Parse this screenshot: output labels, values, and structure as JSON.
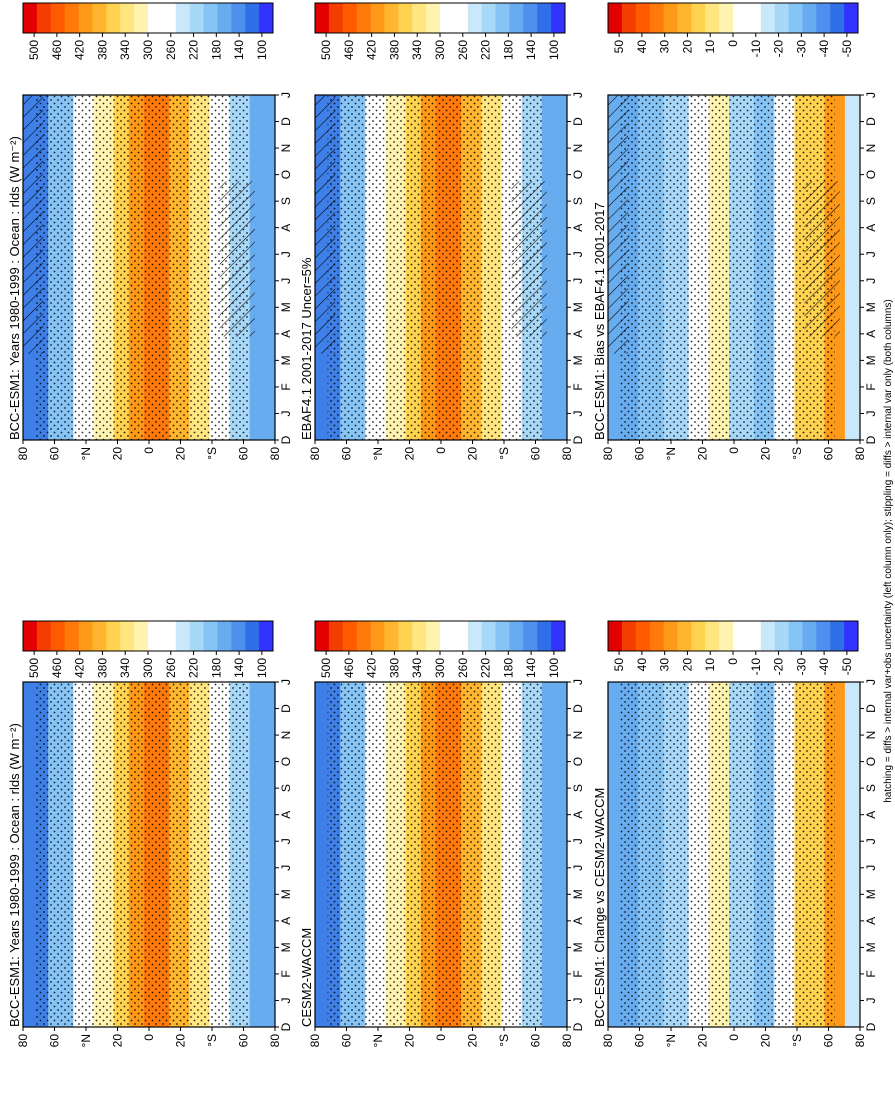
{
  "figure": {
    "footnote": "hatching = diffs > internal var+obs uncertainty (left column only); stippling = diffs > internal var only (both columns)"
  },
  "colors": {
    "abs_scale": [
      "#3333ff",
      "#2f6fe8",
      "#4f90ee",
      "#68acf0",
      "#86c4f5",
      "#a8d8f8",
      "#c9e8fb",
      "#ffffff",
      "#ffffff",
      "#fff3b0",
      "#ffe680",
      "#ffd24f",
      "#ffb52e",
      "#ff9a18",
      "#ff7a0a",
      "#ff5a00",
      "#f43d00",
      "#e30000"
    ],
    "diff_scale": [
      "#3333ff",
      "#2f6fe8",
      "#4f90ee",
      "#68acf0",
      "#86c4f5",
      "#a8d8f8",
      "#c9e8fb",
      "#ffffff",
      "#ffffff",
      "#fff3b0",
      "#ffe680",
      "#ffd24f",
      "#ffb52e",
      "#ff9a18",
      "#ff7a0a",
      "#ff5a00",
      "#f43d00",
      "#e30000"
    ]
  },
  "chart_data": [
    {
      "id": "p1",
      "type": "heatmap",
      "title": "BCC-ESM1: Years 1980-1999 : Ocean : rlds (W m⁻²)",
      "x": [
        "D",
        "J",
        "F",
        "M",
        "A",
        "M",
        "J",
        "J",
        "A",
        "S",
        "O",
        "N",
        "D",
        "J"
      ],
      "y_ticks": [
        "80",
        "60",
        "°N",
        "20",
        "0",
        "20",
        "°S",
        "60",
        "80"
      ],
      "colorbar_ticks": [
        "500",
        "460",
        "420",
        "380",
        "340",
        "300",
        "260",
        "220",
        "180",
        "140",
        "100"
      ],
      "hatching": true,
      "stippling": true
    },
    {
      "id": "p2",
      "type": "heatmap",
      "title": "BCC-ESM1: Years 1980-1999 : Ocean : rlds (W m⁻²)",
      "x": [
        "D",
        "J",
        "F",
        "M",
        "A",
        "M",
        "J",
        "J",
        "A",
        "S",
        "O",
        "N",
        "D",
        "J"
      ],
      "y_ticks": [
        "80",
        "60",
        "°N",
        "20",
        "0",
        "20",
        "°S",
        "60",
        "80"
      ],
      "colorbar_ticks": [
        "500",
        "460",
        "420",
        "380",
        "340",
        "300",
        "260",
        "220",
        "180",
        "140",
        "100"
      ],
      "hatching": false,
      "stippling": true
    },
    {
      "id": "p3",
      "type": "heatmap",
      "title": "EBAF4.1 2001-2017 Uncer=5%",
      "x": [
        "D",
        "J",
        "F",
        "M",
        "A",
        "M",
        "J",
        "J",
        "A",
        "S",
        "O",
        "N",
        "D",
        "J"
      ],
      "y_ticks": [
        "80",
        "60",
        "°N",
        "20",
        "0",
        "20",
        "°S",
        "60",
        "80"
      ],
      "colorbar_ticks": [
        "500",
        "460",
        "420",
        "380",
        "340",
        "300",
        "260",
        "220",
        "180",
        "140",
        "100"
      ],
      "hatching": true,
      "stippling": true
    },
    {
      "id": "p4",
      "type": "heatmap",
      "title": "CESM2-WACCM",
      "x": [
        "D",
        "J",
        "F",
        "M",
        "A",
        "M",
        "J",
        "J",
        "A",
        "S",
        "O",
        "N",
        "D",
        "J"
      ],
      "y_ticks": [
        "80",
        "60",
        "°N",
        "20",
        "0",
        "20",
        "°S",
        "60",
        "80"
      ],
      "colorbar_ticks": [
        "500",
        "460",
        "420",
        "380",
        "340",
        "300",
        "260",
        "220",
        "180",
        "140",
        "100"
      ],
      "hatching": false,
      "stippling": true
    },
    {
      "id": "p5",
      "type": "heatmap",
      "title": "BCC-ESM1: Bias vs EBAF4.1 2001-2017",
      "x": [
        "D",
        "J",
        "F",
        "M",
        "A",
        "M",
        "J",
        "J",
        "A",
        "S",
        "O",
        "N",
        "D",
        "J"
      ],
      "y_ticks": [
        "80",
        "60",
        "°N",
        "20",
        "0",
        "20",
        "°S",
        "60",
        "80"
      ],
      "colorbar_ticks": [
        "50",
        "40",
        "30",
        "20",
        "10",
        "0",
        "-10",
        "-20",
        "-30",
        "-40",
        "-50"
      ],
      "hatching": true,
      "stippling": true
    },
    {
      "id": "p6",
      "type": "heatmap",
      "title": "BCC-ESM1: Change vs CESM2-WACCM",
      "x": [
        "D",
        "J",
        "F",
        "M",
        "A",
        "M",
        "J",
        "J",
        "A",
        "S",
        "O",
        "N",
        "D",
        "J"
      ],
      "y_ticks": [
        "80",
        "60",
        "°N",
        "20",
        "0",
        "20",
        "°S",
        "60",
        "80"
      ],
      "colorbar_ticks": [
        "50",
        "40",
        "30",
        "20",
        "10",
        "0",
        "-10",
        "-20",
        "-30",
        "-40",
        "-50"
      ],
      "hatching": false,
      "stippling": true
    }
  ]
}
